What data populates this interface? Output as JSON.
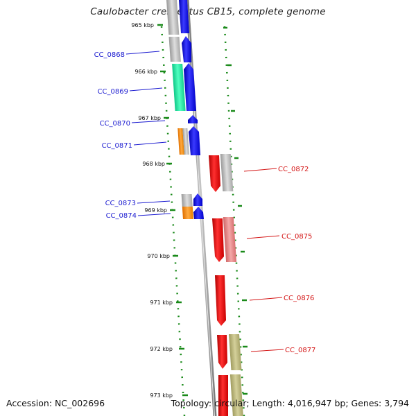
{
  "title": "Caulobacter crescentus CB15, complete genome",
  "accession": "Accession: NC_002696",
  "summary": "Topology: circular; Length: 4,016,947 bp; Genes: 3,794",
  "colors": {
    "forward_gene": "#1010e0",
    "reverse_gene": "#e81818",
    "forward_label": "#1a1ad0",
    "reverse_label": "#d41414",
    "backbone": "#8a8a8a",
    "tick": "#1a8a1a",
    "cog_grey": "#b0b0b0",
    "cog_green": "#20e8a0",
    "cog_orange": "#ff8c10",
    "cog_salmon": "#e88080",
    "cog_khaki": "#b8b478"
  },
  "kbp_labels": [
    "965 kbp",
    "966 kbp",
    "967 kbp",
    "968 kbp",
    "969 kbp",
    "970 kbp",
    "971 kbp",
    "972 kbp",
    "973 kbp"
  ],
  "genes_forward": [
    "CC_0868",
    "CC_0869",
    "CC_0870",
    "CC_0871",
    "CC_0873",
    "CC_0874"
  ],
  "genes_reverse": [
    "CC_0872",
    "CC_0875",
    "CC_0876",
    "CC_0877"
  ]
}
